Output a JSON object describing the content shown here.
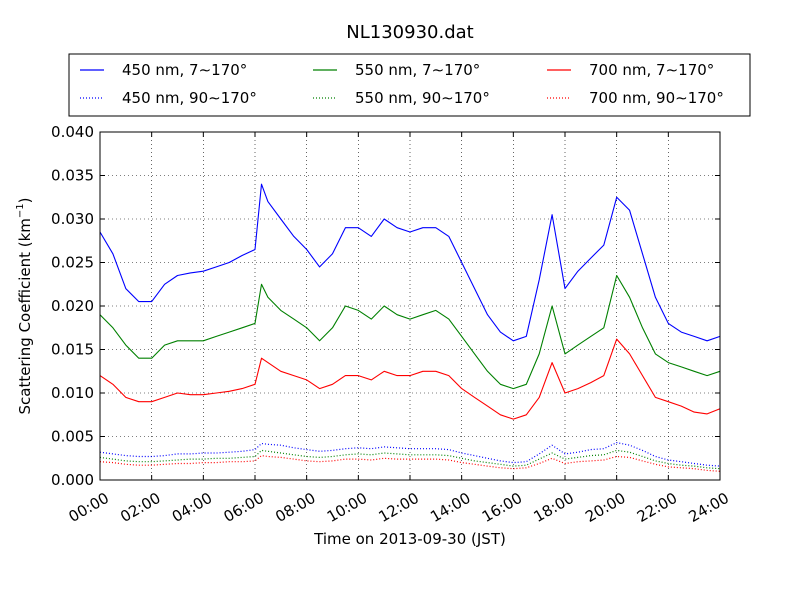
{
  "chart_data": {
    "type": "line",
    "title": "NL130930.dat",
    "xlabel": "Time on 2013-09-30 (JST)",
    "ylabel": "Scattering Coefficient (km",
    "ylabel_sup": "−1",
    "ylabel_close": ")",
    "xlim": [
      0,
      24
    ],
    "ylim": [
      0,
      0.04
    ],
    "x_ticks": [
      0,
      2,
      4,
      6,
      8,
      10,
      12,
      14,
      16,
      18,
      20,
      22,
      24
    ],
    "x_tick_labels": [
      "00:00",
      "02:00",
      "04:00",
      "06:00",
      "08:00",
      "10:00",
      "12:00",
      "14:00",
      "16:00",
      "18:00",
      "20:00",
      "22:00",
      "24:00"
    ],
    "y_ticks": [
      0,
      0.005,
      0.01,
      0.015,
      0.02,
      0.025,
      0.03,
      0.035,
      0.04
    ],
    "y_tick_labels": [
      "0.000",
      "0.005",
      "0.010",
      "0.015",
      "0.020",
      "0.025",
      "0.030",
      "0.035",
      "0.040"
    ],
    "grid": true,
    "legend_position": "top, above plot",
    "x": [
      0,
      0.5,
      1,
      1.5,
      2,
      2.5,
      3,
      3.5,
      4,
      4.5,
      5,
      5.5,
      6,
      6.25,
      6.5,
      7,
      7.5,
      8,
      8.5,
      9,
      9.5,
      10,
      10.5,
      11,
      11.5,
      12,
      12.5,
      13,
      13.5,
      14,
      14.5,
      15,
      15.5,
      16,
      16.5,
      17,
      17.5,
      18,
      18.5,
      19,
      19.5,
      20,
      20.5,
      21,
      21.5,
      22,
      22.5,
      23,
      23.5,
      24
    ],
    "series": [
      {
        "name": "450 nm, 7∼170°",
        "color": "#0000ff",
        "style": "solid",
        "values": [
          0.0285,
          0.026,
          0.022,
          0.0205,
          0.0205,
          0.0225,
          0.0235,
          0.0238,
          0.024,
          0.0245,
          0.025,
          0.0258,
          0.0265,
          0.034,
          0.032,
          0.03,
          0.028,
          0.0265,
          0.0245,
          0.026,
          0.029,
          0.029,
          0.028,
          0.03,
          0.029,
          0.0285,
          0.029,
          0.029,
          0.028,
          0.025,
          0.022,
          0.019,
          0.017,
          0.016,
          0.0165,
          0.023,
          0.0305,
          0.022,
          0.024,
          0.0255,
          0.027,
          0.0325,
          0.031,
          0.026,
          0.021,
          0.018,
          0.017,
          0.0165,
          0.016,
          0.0165
        ]
      },
      {
        "name": "450 nm, 90∼170°",
        "color": "#0000ff",
        "style": "dotted",
        "values": [
          0.0032,
          0.003,
          0.0028,
          0.0027,
          0.0027,
          0.0028,
          0.003,
          0.003,
          0.0031,
          0.0031,
          0.0032,
          0.0033,
          0.0035,
          0.0042,
          0.0041,
          0.004,
          0.0037,
          0.0035,
          0.0033,
          0.0034,
          0.0036,
          0.0037,
          0.0036,
          0.0038,
          0.0037,
          0.0036,
          0.0036,
          0.0036,
          0.0035,
          0.0031,
          0.0028,
          0.0025,
          0.0022,
          0.002,
          0.0021,
          0.003,
          0.004,
          0.003,
          0.0032,
          0.0035,
          0.0036,
          0.0043,
          0.004,
          0.0034,
          0.0027,
          0.0023,
          0.0021,
          0.0019,
          0.0017,
          0.0016
        ]
      },
      {
        "name": "550 nm, 7∼170°",
        "color": "#008000",
        "style": "solid",
        "values": [
          0.019,
          0.0175,
          0.0155,
          0.014,
          0.014,
          0.0155,
          0.016,
          0.016,
          0.016,
          0.0165,
          0.017,
          0.0175,
          0.018,
          0.0225,
          0.021,
          0.0195,
          0.0185,
          0.0175,
          0.016,
          0.0175,
          0.02,
          0.0195,
          0.0185,
          0.02,
          0.019,
          0.0185,
          0.019,
          0.0195,
          0.0185,
          0.0165,
          0.0145,
          0.0125,
          0.011,
          0.0105,
          0.011,
          0.0145,
          0.02,
          0.0145,
          0.0155,
          0.0165,
          0.0175,
          0.0235,
          0.021,
          0.0175,
          0.0145,
          0.0135,
          0.013,
          0.0125,
          0.012,
          0.0125
        ]
      },
      {
        "name": "550 nm, 90∼170°",
        "color": "#008000",
        "style": "dotted",
        "values": [
          0.0026,
          0.0024,
          0.0022,
          0.0021,
          0.0021,
          0.0022,
          0.0023,
          0.0024,
          0.0024,
          0.0025,
          0.0025,
          0.0026,
          0.0027,
          0.0034,
          0.0033,
          0.0031,
          0.0029,
          0.0027,
          0.0026,
          0.0027,
          0.0029,
          0.003,
          0.0029,
          0.0031,
          0.003,
          0.0029,
          0.0029,
          0.0029,
          0.0028,
          0.0025,
          0.0022,
          0.002,
          0.0018,
          0.0016,
          0.0017,
          0.0024,
          0.0031,
          0.0024,
          0.0026,
          0.0028,
          0.0029,
          0.0034,
          0.0032,
          0.0027,
          0.0022,
          0.0019,
          0.0017,
          0.0016,
          0.0014,
          0.0013
        ]
      },
      {
        "name": "700 nm, 7∼170°",
        "color": "#ff0000",
        "style": "solid",
        "values": [
          0.012,
          0.011,
          0.0095,
          0.009,
          0.009,
          0.0095,
          0.01,
          0.0098,
          0.0098,
          0.01,
          0.0102,
          0.0105,
          0.011,
          0.014,
          0.0135,
          0.0125,
          0.012,
          0.0115,
          0.0105,
          0.011,
          0.012,
          0.012,
          0.0115,
          0.0125,
          0.012,
          0.012,
          0.0125,
          0.0125,
          0.012,
          0.0105,
          0.0095,
          0.0085,
          0.0075,
          0.007,
          0.0075,
          0.0095,
          0.0135,
          0.01,
          0.0105,
          0.0112,
          0.012,
          0.0162,
          0.0145,
          0.012,
          0.0095,
          0.009,
          0.0085,
          0.0078,
          0.0076,
          0.0082
        ]
      },
      {
        "name": "700 nm, 90∼170°",
        "color": "#ff0000",
        "style": "dotted",
        "values": [
          0.0021,
          0.002,
          0.0018,
          0.0017,
          0.0017,
          0.0018,
          0.0019,
          0.0019,
          0.002,
          0.002,
          0.0021,
          0.0021,
          0.0022,
          0.0028,
          0.0027,
          0.0026,
          0.0024,
          0.0022,
          0.0021,
          0.0022,
          0.0024,
          0.0024,
          0.0023,
          0.0025,
          0.0024,
          0.0024,
          0.0024,
          0.0024,
          0.0023,
          0.002,
          0.0018,
          0.0016,
          0.0014,
          0.0013,
          0.0014,
          0.0019,
          0.0025,
          0.0019,
          0.0021,
          0.0022,
          0.0023,
          0.0027,
          0.0026,
          0.0022,
          0.0018,
          0.0015,
          0.0014,
          0.0013,
          0.0011,
          0.001
        ]
      }
    ]
  }
}
